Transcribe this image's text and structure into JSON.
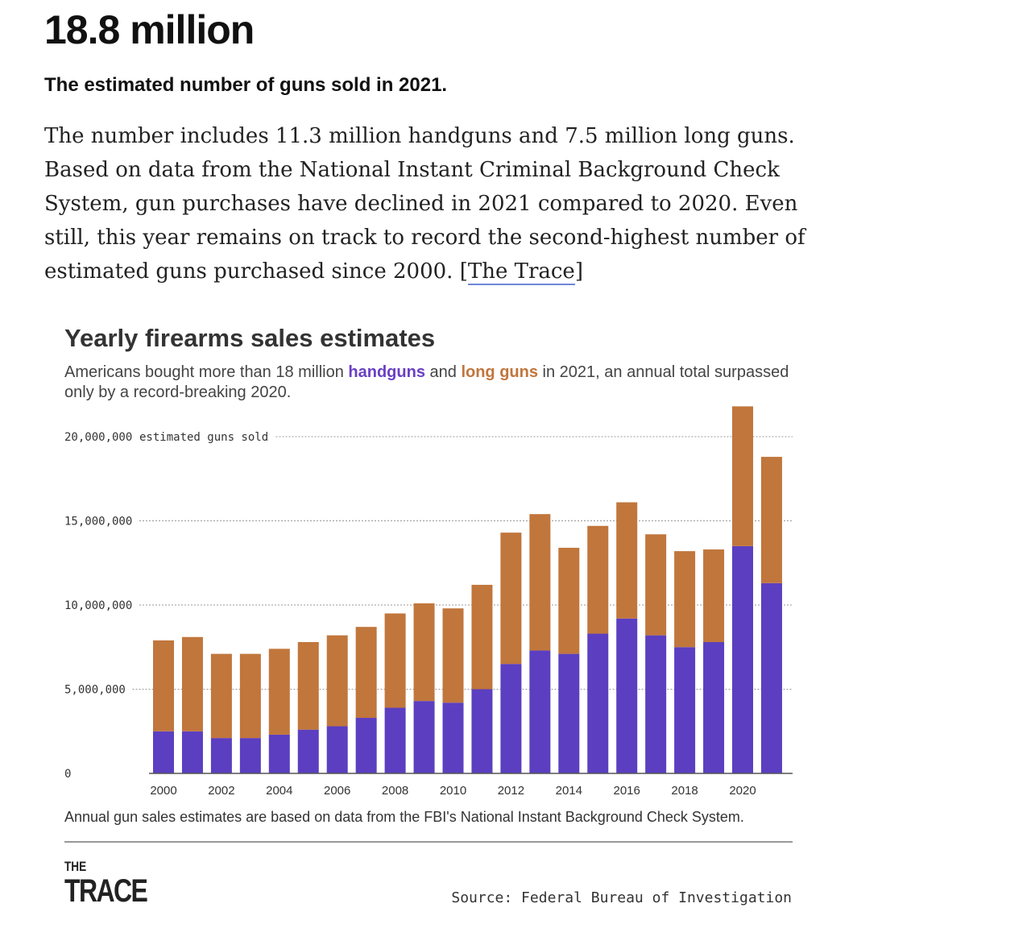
{
  "header": {
    "stat": "18.8 million",
    "subhead": "The estimated number of guns sold in 2021."
  },
  "body": {
    "text": "The number includes 11.3 million handguns and 7.5 million long guns. Based on data from the National Instant Criminal Background Check System, gun purchases have declined in 2021 compared to 2020. Even still, this year remains on track to record the second-highest number of estimated guns purchased since 2000. [",
    "link": "The Trace",
    "suffix": "]"
  },
  "chart": {
    "title": "Yearly firearms sales estimates",
    "subtitle_pre": "Americans bought more than 18 million ",
    "subtitle_hand": "handguns",
    "subtitle_mid": " and ",
    "subtitle_long": "long guns",
    "subtitle_post": " in 2021, an annual total surpassed only by a record-breaking 2020.",
    "note": "Annual gun sales estimates are based on data from the FBI's National Instant Background Check System."
  },
  "footer": {
    "logo_top": "THE",
    "logo_bottom": "TRACE",
    "source": "Source: Federal Bureau of Investigation"
  },
  "colors": {
    "handguns": "#5b3fc0",
    "long_guns": "#c1763c",
    "grid": "#999999",
    "text": "#333333"
  },
  "chart_data": {
    "type": "bar",
    "stacked": true,
    "title": "Yearly firearms sales estimates",
    "ylabel": "estimated guns sold",
    "ylim": [
      0,
      22000000
    ],
    "yticks": [
      0,
      5000000,
      10000000,
      15000000,
      20000000
    ],
    "ytick_labels": [
      "0",
      "5,000,000",
      "10,000,000",
      "15,000,000",
      "20,000,000"
    ],
    "ytick_suffix": "estimated guns sold",
    "categories": [
      "2000",
      "2001",
      "2002",
      "2003",
      "2004",
      "2005",
      "2006",
      "2007",
      "2008",
      "2009",
      "2010",
      "2011",
      "2012",
      "2013",
      "2014",
      "2015",
      "2016",
      "2017",
      "2018",
      "2019",
      "2020",
      "2021"
    ],
    "xtick_labels": [
      "2000",
      "",
      "2002",
      "",
      "2004",
      "",
      "2006",
      "",
      "2008",
      "",
      "2010",
      "",
      "2012",
      "",
      "2014",
      "",
      "2016",
      "",
      "2018",
      "",
      "2020",
      ""
    ],
    "series": [
      {
        "name": "handguns",
        "values": [
          2500000,
          2500000,
          2100000,
          2100000,
          2300000,
          2600000,
          2800000,
          3300000,
          3900000,
          4300000,
          4200000,
          5000000,
          6500000,
          7300000,
          7100000,
          8300000,
          9200000,
          8200000,
          7500000,
          7800000,
          13500000,
          11300000
        ]
      },
      {
        "name": "long guns",
        "values": [
          5400000,
          5600000,
          5000000,
          5000000,
          5100000,
          5200000,
          5400000,
          5400000,
          5600000,
          5800000,
          5600000,
          6200000,
          7800000,
          8100000,
          6300000,
          6400000,
          6900000,
          6000000,
          5700000,
          5500000,
          8300000,
          7500000
        ]
      }
    ]
  }
}
